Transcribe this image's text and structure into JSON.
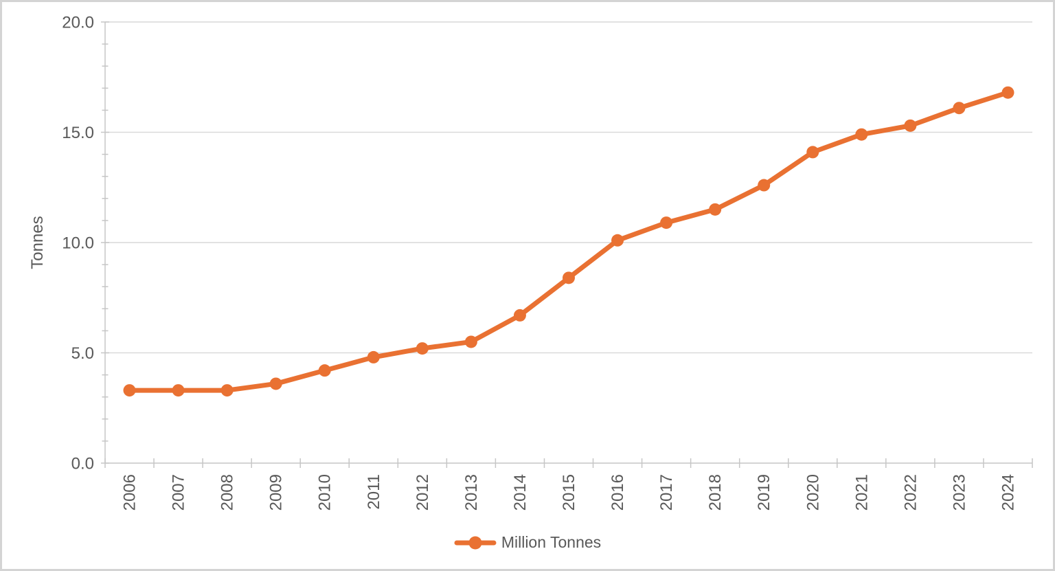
{
  "frame": {
    "background": "#ffffff",
    "border_color": "#d4d4d4"
  },
  "chart_data": {
    "type": "line",
    "title": "",
    "xlabel": "",
    "ylabel": "Tonnes",
    "categories": [
      "2006",
      "2007",
      "2008",
      "2009",
      "2010",
      "2011",
      "2012",
      "2013",
      "2014",
      "2015",
      "2016",
      "2017",
      "2018",
      "2019",
      "2020",
      "2021",
      "2022",
      "2023",
      "2024"
    ],
    "series": [
      {
        "name": "Million Tonnes",
        "color": "#E97132",
        "values": [
          3.3,
          3.3,
          3.3,
          3.6,
          4.2,
          4.8,
          5.2,
          5.5,
          6.7,
          8.4,
          10.1,
          10.9,
          11.5,
          12.6,
          14.1,
          14.9,
          15.3,
          16.1,
          16.8
        ]
      }
    ],
    "ylim": [
      0,
      20
    ],
    "y_major_ticks": [
      0,
      5,
      10,
      15,
      20
    ],
    "y_tick_labels": [
      "0.0",
      "5.0",
      "10.0",
      "15.0",
      "20.0"
    ],
    "y_minor_step": 1,
    "grid": "horizontal-major",
    "legend_position": "bottom-center",
    "marker": "circle",
    "colors": {
      "gridline": "#D9D9D9",
      "axis": "#C6C6C6",
      "tick": "#C6C6C6",
      "text": "#595959"
    }
  }
}
